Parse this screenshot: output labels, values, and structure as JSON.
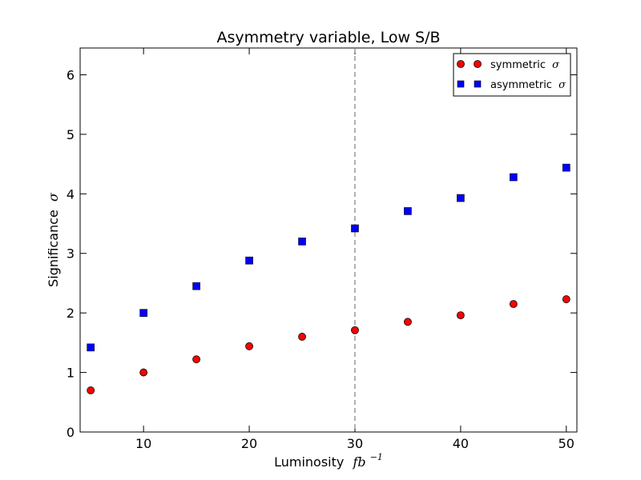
{
  "chart_data": {
    "type": "scatter",
    "title": "Asymmetry variable, Low S/B",
    "xlabel": {
      "text": "Luminosity",
      "math": "fb",
      "sup": "−1"
    },
    "ylabel": {
      "text": "Significance",
      "math": "σ"
    },
    "xlim": [
      4,
      51
    ],
    "ylim": [
      0,
      6.45
    ],
    "xticks": [
      10,
      20,
      30,
      40,
      50
    ],
    "yticks": [
      0,
      1,
      2,
      3,
      4,
      5,
      6
    ],
    "grid": false,
    "legend_position": "upper right",
    "vline": {
      "x": 30,
      "style": "dashed",
      "color": "#808080"
    },
    "series": [
      {
        "name": "symmetric",
        "name_math": "σ",
        "marker": "circle",
        "color": "#ff0000",
        "x": [
          5,
          10,
          15,
          20,
          25,
          30,
          35,
          40,
          45,
          50
        ],
        "y": [
          0.7,
          1.0,
          1.22,
          1.44,
          1.6,
          1.71,
          1.85,
          1.96,
          2.15,
          2.23
        ]
      },
      {
        "name": "asymmetric",
        "name_math": "σ",
        "marker": "square",
        "color": "#0000ff",
        "x": [
          5,
          10,
          15,
          20,
          25,
          30,
          35,
          40,
          45,
          50
        ],
        "y": [
          1.42,
          2.0,
          2.45,
          2.88,
          3.2,
          3.42,
          3.71,
          3.93,
          4.28,
          4.44
        ]
      }
    ]
  }
}
